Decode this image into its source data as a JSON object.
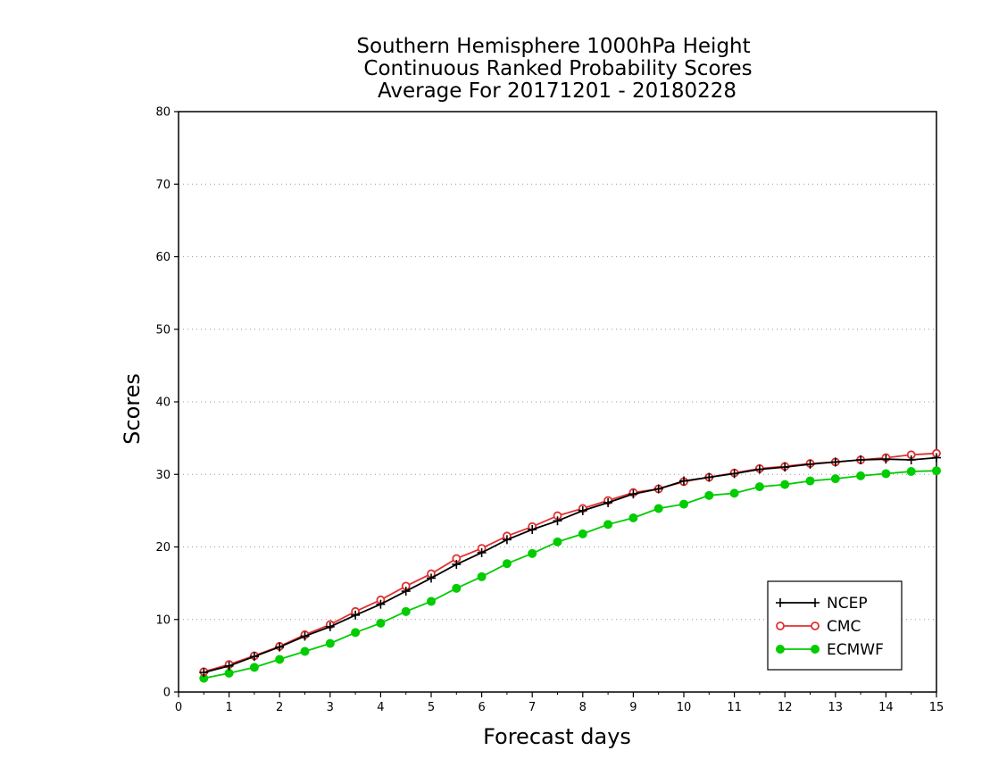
{
  "chart_data": {
    "type": "line",
    "title_lines": [
      "Southern Hemisphere 1000hPa Height",
      "Continuous Ranked Probability Scores",
      "Average For 20171201 - 20180228"
    ],
    "xlabel": "Forecast days",
    "ylabel": "Scores",
    "xlim": [
      0,
      15
    ],
    "ylim": [
      0,
      80
    ],
    "xticks": [
      "0",
      "1",
      "2",
      "3",
      "4",
      "5",
      "6",
      "7",
      "8",
      "9",
      "10",
      "11",
      "12",
      "13",
      "14",
      "15"
    ],
    "yticks": [
      "0",
      "10",
      "20",
      "30",
      "40",
      "50",
      "60",
      "70",
      "80"
    ],
    "grid": "horizontal dotted",
    "legend_position": "bottom-right",
    "x": [
      0.5,
      1,
      1.5,
      2,
      2.5,
      3,
      3.5,
      4,
      4.5,
      5,
      5.5,
      6,
      6.5,
      7,
      7.5,
      8,
      8.5,
      9,
      9.5,
      10,
      10.5,
      11,
      11.5,
      12,
      12.5,
      13,
      13.5,
      14,
      14.5,
      15
    ],
    "series": [
      {
        "name": "NCEP",
        "color": "#000000",
        "marker": "plus",
        "values": [
          2.7,
          3.6,
          4.9,
          6.2,
          7.7,
          9.0,
          10.6,
          12.1,
          13.9,
          15.7,
          17.6,
          19.2,
          21.0,
          22.4,
          23.6,
          25.0,
          26.1,
          27.3,
          28.0,
          29.1,
          29.6,
          30.1,
          30.7,
          31.0,
          31.4,
          31.7,
          32.0,
          32.1,
          32.0,
          32.3
        ]
      },
      {
        "name": "CMC",
        "color": "#e03030",
        "marker": "open-circle",
        "values": [
          2.8,
          3.8,
          5.0,
          6.3,
          7.9,
          9.3,
          11.1,
          12.7,
          14.6,
          16.3,
          18.4,
          19.8,
          21.5,
          22.8,
          24.3,
          25.3,
          26.4,
          27.5,
          28.0,
          29.0,
          29.6,
          30.2,
          30.8,
          31.1,
          31.5,
          31.7,
          32.0,
          32.3,
          32.7,
          32.9
        ]
      },
      {
        "name": "ECMWF",
        "color": "#00cc00",
        "marker": "filled-circle",
        "values": [
          1.9,
          2.6,
          3.4,
          4.5,
          5.6,
          6.7,
          8.2,
          9.5,
          11.1,
          12.5,
          14.3,
          15.9,
          17.7,
          19.1,
          20.7,
          21.8,
          23.1,
          24.0,
          25.3,
          25.9,
          27.1,
          27.4,
          28.3,
          28.6,
          29.1,
          29.4,
          29.8,
          30.1,
          30.4,
          30.5
        ]
      }
    ]
  }
}
